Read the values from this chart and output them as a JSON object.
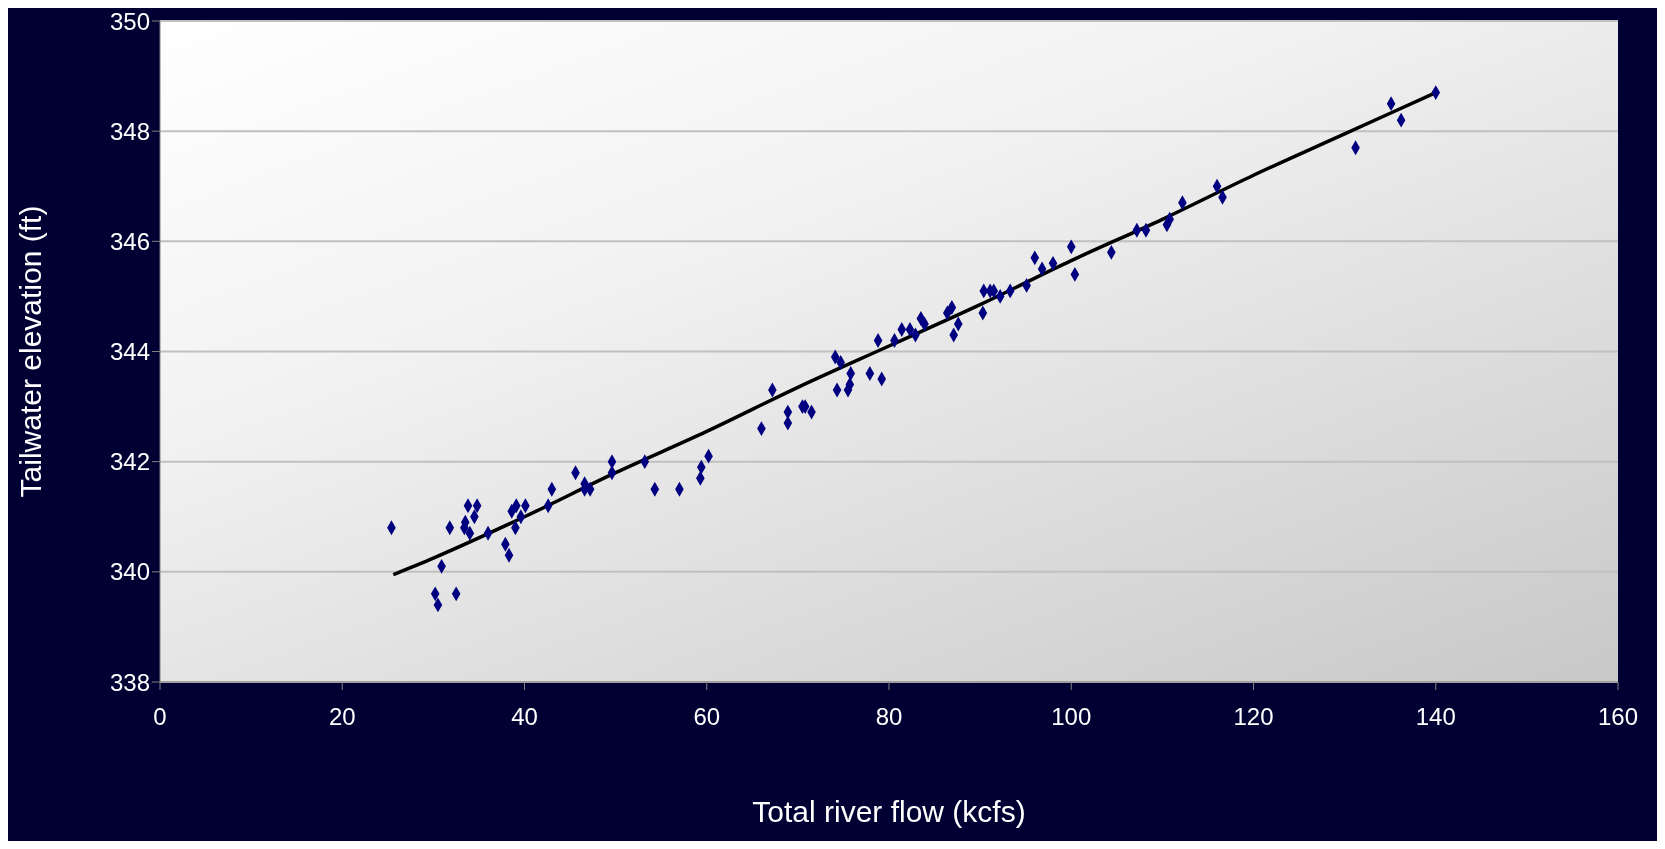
{
  "chart_data": {
    "type": "scatter",
    "xlabel": "Total river flow (kcfs)",
    "ylabel": "Tailwater elevation (ft)",
    "xlim": [
      0,
      160
    ],
    "xticks": [
      0,
      20,
      40,
      60,
      80,
      100,
      120,
      140,
      160
    ],
    "ylim": [
      338,
      350
    ],
    "yticks": [
      338,
      340,
      342,
      344,
      346,
      348,
      350
    ],
    "grid": "y",
    "series": [
      {
        "marker": "diamond",
        "color": "#000080",
        "x": [
          25.4,
          30.2,
          30.5,
          30.9,
          31.8,
          32.5,
          33.4,
          33.5,
          33.8,
          34.5,
          34.8,
          34.0,
          36.0,
          37.9,
          38.3,
          38.6,
          39.0,
          39.1,
          39.6,
          40.1,
          42.6,
          43.0,
          45.6,
          46.6,
          46.6,
          47.2,
          49.6,
          49.6,
          53.2,
          54.3,
          57.0,
          59.3,
          59.4,
          60.2,
          66.0,
          67.2,
          68.9,
          68.9,
          70.5,
          70.8,
          71.5,
          74.3,
          74.1,
          74.7,
          75.5,
          75.7,
          75.8,
          77.9,
          78.8,
          79.2,
          80.6,
          81.4,
          82.3,
          82.9,
          83.5,
          83.9,
          86.4,
          87.1,
          86.9,
          87.6,
          90.3,
          90.4,
          91.1,
          91.5,
          92.2,
          93.3,
          95.1,
          96.0,
          96.8,
          98.0,
          100.0,
          100.4,
          104.4,
          107.2,
          108.2,
          110.5,
          110.8,
          112.2,
          116.0,
          116.6,
          131.2,
          135.1,
          136.2,
          140.0
        ],
        "values": [
          340.8,
          339.6,
          339.4,
          340.1,
          340.8,
          339.6,
          340.8,
          340.9,
          341.2,
          341.0,
          341.2,
          340.7,
          340.7,
          340.5,
          340.3,
          341.1,
          340.8,
          341.2,
          341.0,
          341.2,
          341.2,
          341.5,
          341.8,
          341.6,
          341.5,
          341.5,
          342.0,
          341.8,
          342.0,
          341.5,
          341.5,
          341.7,
          341.9,
          342.1,
          342.6,
          343.3,
          342.9,
          342.7,
          343.0,
          343.0,
          342.9,
          343.3,
          343.9,
          343.8,
          343.3,
          343.4,
          343.6,
          343.6,
          344.2,
          343.5,
          344.2,
          344.4,
          344.4,
          344.3,
          344.6,
          344.5,
          344.7,
          344.3,
          344.8,
          344.5,
          344.7,
          345.1,
          345.1,
          345.1,
          345.0,
          345.1,
          345.2,
          345.7,
          345.5,
          345.6,
          345.9,
          345.4,
          345.8,
          346.2,
          346.2,
          346.3,
          346.4,
          346.7,
          347.0,
          346.8,
          347.7,
          348.5,
          348.2,
          348.7
        ]
      },
      {
        "type": "line",
        "marker": "none",
        "color": "#000000",
        "x": [
          25.6,
          30,
          40,
          50,
          60,
          70,
          80,
          90,
          100,
          110,
          120,
          130,
          140
        ],
        "values": [
          339.95,
          340.25,
          341.0,
          341.8,
          342.55,
          343.35,
          344.1,
          344.85,
          345.65,
          346.4,
          347.2,
          347.95,
          348.7
        ]
      }
    ]
  }
}
